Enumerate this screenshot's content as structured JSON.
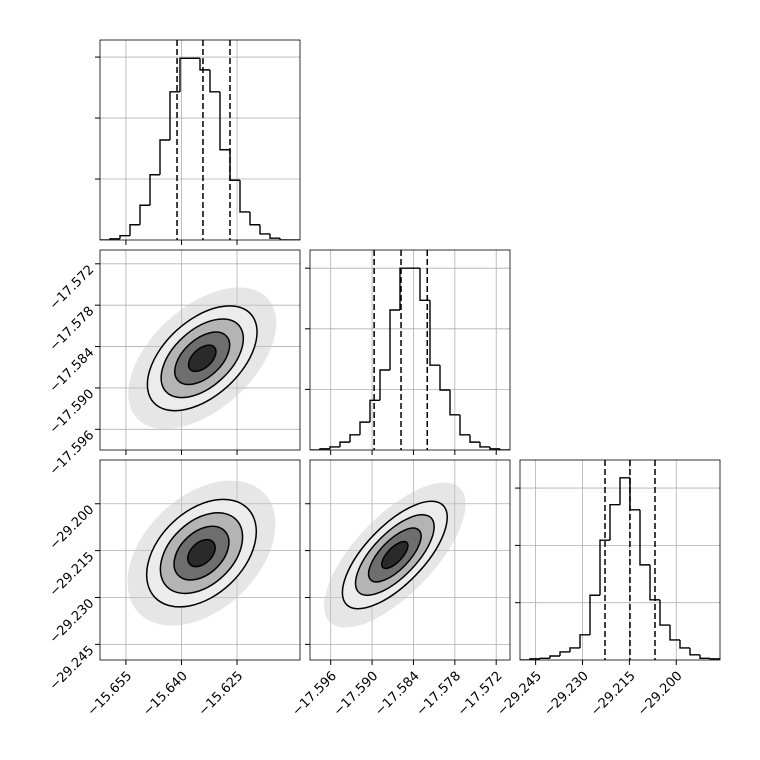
{
  "chart_data": {
    "type": "corner",
    "parameters": [
      {
        "xlim": [
          -15.662,
          -15.608
        ],
        "ticks": [
          {
            "value": -15.655,
            "label": "−15.655"
          },
          {
            "value": -15.64,
            "label": "−15.640"
          },
          {
            "value": -15.625,
            "label": "−15.625"
          }
        ]
      },
      {
        "xlim": [
          -17.599,
          -17.57
        ],
        "ticks": [
          {
            "value": -17.596,
            "label": "−17.596"
          },
          {
            "value": -17.59,
            "label": "−17.590"
          },
          {
            "value": -17.584,
            "label": "−17.584"
          },
          {
            "value": -17.578,
            "label": "−17.578"
          },
          {
            "value": -17.572,
            "label": "−17.572"
          }
        ]
      },
      {
        "xlim": [
          -29.25,
          -29.186
        ],
        "ticks": [
          {
            "value": -29.245,
            "label": "−29.245"
          },
          {
            "value": -29.23,
            "label": "−29.230"
          },
          {
            "value": -29.215,
            "label": "−29.215"
          },
          {
            "value": -29.2,
            "label": "−29.200"
          }
        ]
      }
    ],
    "histograms": [
      {
        "bins": [
          -15.662,
          -15.6593,
          -15.6566,
          -15.6539,
          -15.6512,
          -15.6485,
          -15.6458,
          -15.6431,
          -15.6404,
          -15.6377,
          -15.635,
          -15.6323,
          -15.6296,
          -15.6269,
          -15.6242,
          -15.6215,
          -15.6188,
          -15.6161,
          -15.6134,
          -15.6107,
          -15.608
        ],
        "values": [
          0,
          0.02,
          0.07,
          0.25,
          0.57,
          1.07,
          1.64,
          2.43,
          2.98,
          2.98,
          2.79,
          2.43,
          1.48,
          0.98,
          0.46,
          0.25,
          0.1,
          0.03,
          0,
          0
        ],
        "ylim": [
          0,
          3.28
        ],
        "yticks": [
          1,
          2,
          3
        ],
        "quantiles": [
          -15.6412,
          -15.6342,
          -15.6269
        ]
      },
      {
        "bins": [
          -17.599,
          -17.59755,
          -17.5961,
          -17.59465,
          -17.5932,
          -17.59175,
          -17.5903,
          -17.58885,
          -17.5874,
          -17.58595,
          -17.5845,
          -17.58305,
          -17.5816,
          -17.58015,
          -17.5787,
          -17.57725,
          -17.5758,
          -17.57435,
          -17.5729,
          -17.57145,
          -17.57
        ],
        "values": [
          0,
          0.02,
          0.05,
          0.13,
          0.25,
          0.46,
          0.82,
          1.32,
          2.31,
          3.0,
          3.0,
          2.47,
          1.4,
          0.99,
          0.58,
          0.25,
          0.13,
          0.05,
          0.02,
          0
        ],
        "ylim": [
          0,
          3.3
        ],
        "yticks": [
          1,
          2,
          3
        ],
        "quantiles": [
          -17.5897,
          -17.5858,
          -17.582
        ]
      },
      {
        "bins": [
          -29.25,
          -29.2468,
          -29.2436,
          -29.2404,
          -29.2372,
          -29.234,
          -29.2308,
          -29.2276,
          -29.2244,
          -29.2212,
          -29.218,
          -29.2148,
          -29.2116,
          -29.2084,
          -29.2052,
          -29.202,
          -29.1988,
          -29.1956,
          -29.1924,
          -29.1892,
          -29.186
        ],
        "values": [
          0,
          0.02,
          0.03,
          0.07,
          0.14,
          0.21,
          0.44,
          1.13,
          2.09,
          2.71,
          3.18,
          2.62,
          1.66,
          1.05,
          0.61,
          0.35,
          0.21,
          0.09,
          0.03,
          0.02
        ],
        "ylim": [
          0,
          3.49
        ],
        "yticks": [
          1,
          2,
          3
        ],
        "quantiles": [
          -29.2228,
          -29.2148,
          -29.2068
        ]
      }
    ],
    "panels2d": [
      {
        "center_x": -15.6344,
        "center_y": -17.5857,
        "sigma_x": 0.0074,
        "sigma_y": 0.0038,
        "correlation": 0.5,
        "levels": [
          0.5,
          1,
          1.5,
          2
        ]
      },
      {
        "center_x": -15.6346,
        "center_y": -29.2158,
        "sigma_x": 0.0074,
        "sigma_y": 0.0086,
        "correlation": 0.4,
        "levels": [
          0.5,
          1,
          1.5,
          2
        ]
      },
      {
        "center_x": -17.5867,
        "center_y": -29.2164,
        "sigma_x": 0.0038,
        "sigma_y": 0.0086,
        "correlation": 0.7,
        "levels": [
          0.5,
          1,
          1.5,
          2
        ]
      }
    ],
    "grid": true
  }
}
